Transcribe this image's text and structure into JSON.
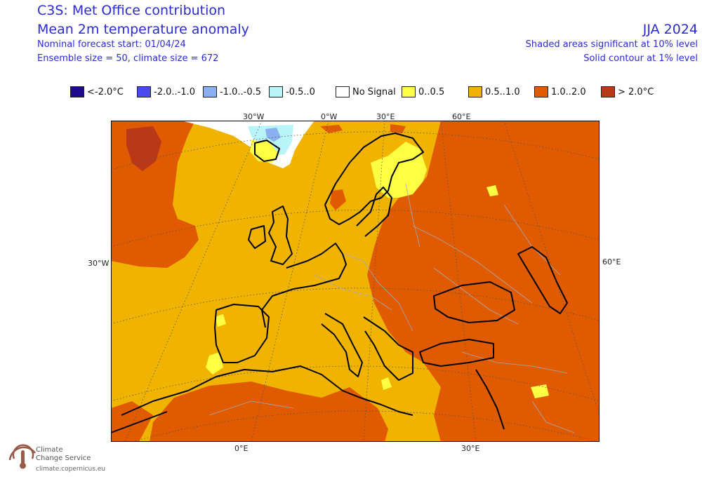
{
  "header": {
    "title_line1": "C3S: Met Office contribution",
    "title_line2": "Mean 2m temperature anomaly",
    "forecast_start": "Nominal forecast start: 01/04/24",
    "ensemble": "Ensemble size = 50, climate size = 672",
    "season": "JJA 2024",
    "significance_shade": "Shaded areas significant at 10% level",
    "significance_contour": "Solid contour at 1% level"
  },
  "legend": {
    "items": [
      {
        "label": "<-2.0°C",
        "color": "#1f0a8c"
      },
      {
        "label": "-2.0..-1.0",
        "color": "#4a4af0"
      },
      {
        "label": "-1.0..-0.5",
        "color": "#8ab0f0"
      },
      {
        "label": "-0.5..0",
        "color": "#b8f4f8"
      },
      {
        "label": "No Signal",
        "color": "#ffffff"
      },
      {
        "label": "0..0.5",
        "color": "#ffff44"
      },
      {
        "label": "0.5..1.0",
        "color": "#f0b400"
      },
      {
        "label": "1.0..2.0",
        "color": "#e05a00"
      },
      {
        "label": "> 2.0°C",
        "color": "#b83818"
      }
    ]
  },
  "axes": {
    "top": [
      "30°W",
      "0°W",
      "30°E",
      "60°E"
    ],
    "left": "30°W",
    "right": "60°E",
    "bottom": [
      "0°E",
      "30°E"
    ]
  },
  "map": {
    "region": "Europe",
    "colors": {
      "base": "#f0b400",
      "warm": "#e05a00",
      "hot": "#b83818",
      "mild": "#ffff44",
      "cool": "#8ab0f0",
      "cold": "#4a4af0",
      "slight": "#b8f4f8"
    }
  },
  "logo": {
    "line1": "Climate",
    "line2": "Change Service",
    "url": "climate.copernicus.eu"
  }
}
